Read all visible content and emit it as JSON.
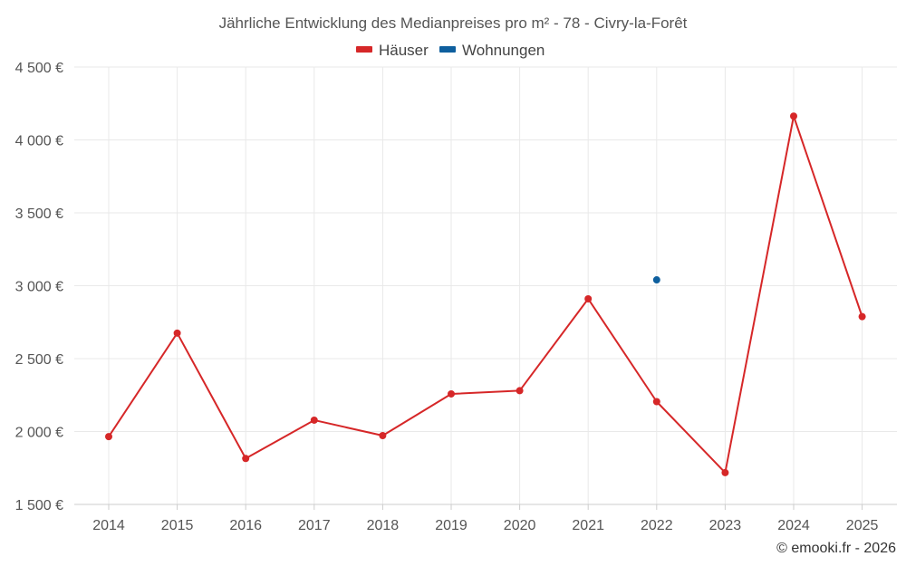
{
  "title": "Jährliche Entwicklung des Medianpreises pro m² - 78 - Civry-la-Forêt",
  "credit": "© emooki.fr - 2026",
  "colors": {
    "houses": "#d62728",
    "apartments": "#0e5f9e",
    "grid": "#e9e9e9"
  },
  "chart_data": {
    "type": "line",
    "title": "Jährliche Entwicklung des Medianpreises pro m² - 78 - Civry-la-Forêt",
    "xlabel": "",
    "ylabel": "",
    "categories": [
      "2014",
      "2015",
      "2016",
      "2017",
      "2018",
      "2019",
      "2020",
      "2021",
      "2022",
      "2023",
      "2024",
      "2025"
    ],
    "y_ticks": [
      "1 500 €",
      "2 000 €",
      "2 500 €",
      "3 000 €",
      "3 500 €",
      "4 000 €",
      "4 500 €"
    ],
    "y_tick_values": [
      1500,
      2000,
      2500,
      3000,
      3500,
      4000,
      4500
    ],
    "ylim": [
      1500,
      4500
    ],
    "grid": true,
    "legend_position": "top-center",
    "series": [
      {
        "name": "Häuser",
        "color": "#d62728",
        "values": [
          1965,
          2675,
          1815,
          2078,
          1972,
          2258,
          2280,
          2910,
          2205,
          1718,
          4163,
          2788
        ]
      },
      {
        "name": "Wohnungen",
        "color": "#0e5f9e",
        "values": [
          null,
          null,
          null,
          null,
          null,
          null,
          null,
          null,
          3040,
          null,
          null,
          null
        ]
      }
    ]
  }
}
